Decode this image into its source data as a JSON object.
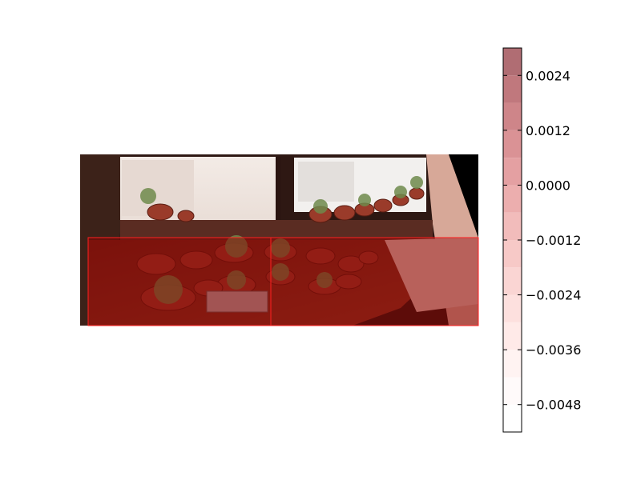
{
  "chart_data": {
    "type": "heatmap",
    "title": "",
    "xlabel": "",
    "ylabel": "",
    "image": {
      "description_icon": "photo-panorama-succulents-on-windowsill",
      "overlay_color": "#8b0000",
      "overlay_alpha": 0.5
    },
    "colorbar": {
      "vmin": -0.0054,
      "vmax": 0.003,
      "levels": [
        -0.0054,
        -0.0048,
        -0.0042,
        -0.0036,
        -0.003,
        -0.0024,
        -0.0018,
        -0.0012,
        -0.0006,
        0.0,
        0.0006,
        0.0012,
        0.0018,
        0.0024,
        0.003
      ],
      "colors": [
        "#ffffff",
        "#fffafa",
        "#fff3f2",
        "#ffeae8",
        "#fde0de",
        "#fad5d3",
        "#f7c9c7",
        "#f2bcbb",
        "#ecaeae",
        "#e4a0a2",
        "#da9295",
        "#ce8589",
        "#c0787d",
        "#b06d73"
      ],
      "ticks": [
        {
          "value": 0.0024,
          "label": "0.0024"
        },
        {
          "value": 0.0012,
          "label": "0.0012"
        },
        {
          "value": 0.0,
          "label": "0.0000"
        },
        {
          "value": -0.0012,
          "label": "−0.0012"
        },
        {
          "value": -0.0024,
          "label": "−0.0024"
        },
        {
          "value": -0.0036,
          "label": "−0.0036"
        },
        {
          "value": -0.0048,
          "label": "−0.0048"
        }
      ]
    }
  }
}
